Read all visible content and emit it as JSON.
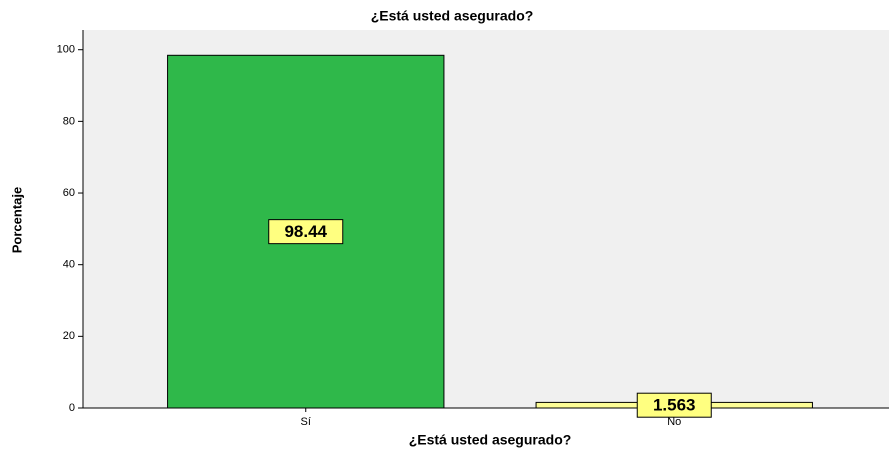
{
  "chart_data": {
    "type": "bar",
    "title": "¿Está usted asegurado?",
    "x_label": "¿Está usted asegurado?",
    "y_label": "Porcentaje",
    "categories": [
      "Sí",
      "No"
    ],
    "values": [
      98.44,
      1.563
    ],
    "colors": [
      "#2fb84a",
      "#fdfd96"
    ],
    "ylim": [
      0,
      105.5
    ],
    "yticks": [
      0,
      20,
      40,
      60,
      80,
      100
    ],
    "grid": false
  }
}
